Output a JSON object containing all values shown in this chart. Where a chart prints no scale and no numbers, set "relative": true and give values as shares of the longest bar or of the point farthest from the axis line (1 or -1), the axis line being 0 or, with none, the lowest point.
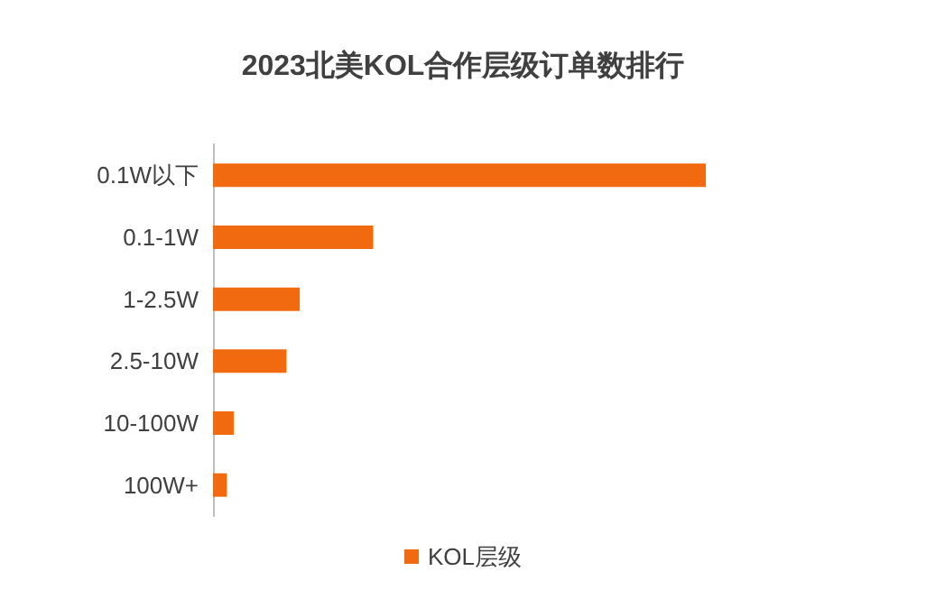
{
  "chart_data": {
    "type": "bar",
    "title": "2023北美KOL合作层级订单数排行",
    "orientation": "horizontal",
    "relative": true,
    "categories": [
      "0.1W以下",
      "0.1-1W",
      "1-2.5W",
      "2.5-10W",
      "10-100W",
      "100W+"
    ],
    "series": [
      {
        "name": "KOL层级",
        "color": "#f26a0f",
        "values": [
          1,
          0.325,
          0.176,
          0.149,
          0.042,
          0.028
        ]
      }
    ],
    "legend": "bottom"
  }
}
